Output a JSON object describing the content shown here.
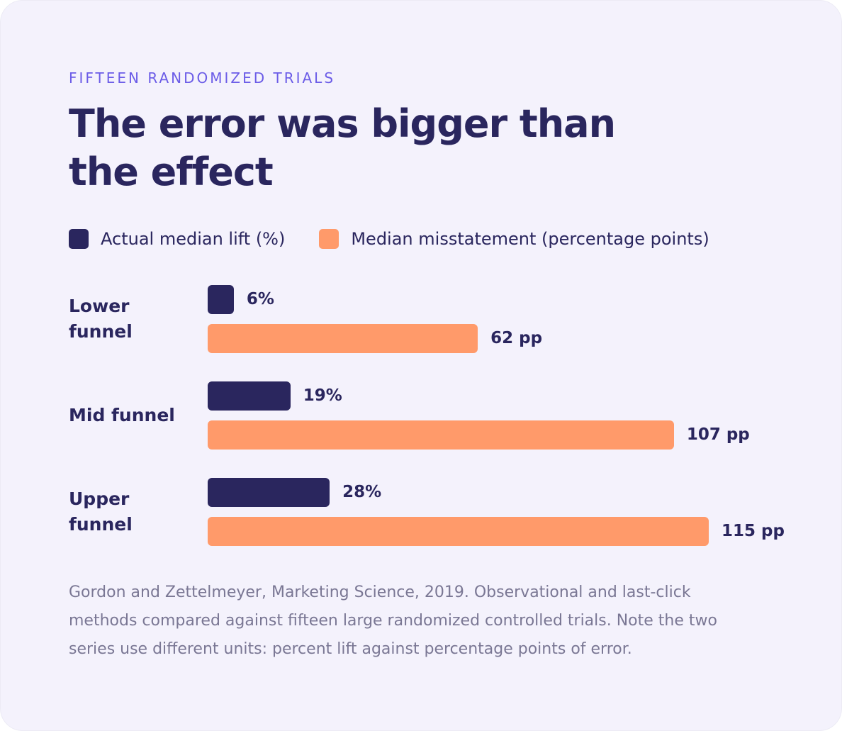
{
  "chart_data": {
    "type": "bar",
    "orientation": "horizontal",
    "eyebrow": "FIFTEEN RANDOMIZED TRIALS",
    "title": "The error was bigger than the effect",
    "categories": [
      "Lower funnel",
      "Mid funnel",
      "Upper funnel"
    ],
    "series": [
      {
        "name": "Actual median lift (%)",
        "color": "#2a265e",
        "values": [
          6,
          19,
          28
        ],
        "value_labels": [
          "6%",
          "19%",
          "28%"
        ]
      },
      {
        "name": "Median misstatement (percentage points)",
        "color": "#ff9a6a",
        "values": [
          62,
          107,
          115
        ],
        "value_labels": [
          "62 pp",
          "107 pp",
          "115 pp"
        ]
      }
    ],
    "note": "Gordon and Zettelmeyer, Marketing Science, 2019. Observational and last-click methods compared against fifteen large randomized controlled trials. Note the two series use different units: percent lift against percentage points of error."
  }
}
